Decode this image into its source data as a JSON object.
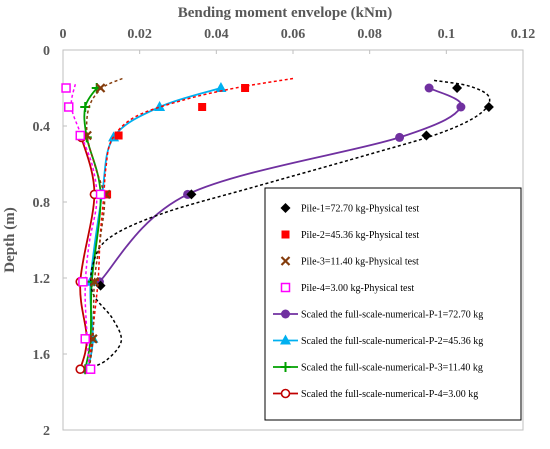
{
  "chart_data": {
    "type": "scatter",
    "title": "",
    "xlabel": "Bending moment envelope (kNm)",
    "ylabel": "Depth (m)",
    "xlim": [
      0,
      0.12
    ],
    "ylim": [
      0,
      2
    ],
    "y_inverted": true,
    "x_axis_position": "top",
    "x_ticks": [
      0,
      0.02,
      0.04,
      0.06,
      0.08,
      0.1,
      0.12
    ],
    "x_tick_labels": [
      "0",
      "0.02",
      "0.04",
      "0.06",
      "0.08",
      "0.1",
      "0.12"
    ],
    "y_ticks": [
      0,
      0.4,
      0.8,
      1.2,
      1.6,
      2
    ],
    "y_tick_labels": [
      "0",
      "0.4",
      "0.8",
      "1.2",
      "1.6",
      "2"
    ],
    "grid": false,
    "legend_position": "right",
    "series": [
      {
        "name": "Pile-1=72.70 kg-Physical test",
        "kind": "marker",
        "marker": "diamond",
        "color": "#000000",
        "points": [
          [
            0.1028,
            0.2
          ],
          [
            0.1111,
            0.3
          ],
          [
            0.0948,
            0.45
          ],
          [
            0.0335,
            0.76
          ],
          [
            0.0098,
            1.24
          ]
        ],
        "fit": [
          [
            0.0968,
            0.16
          ],
          [
            0.106,
            0.19
          ],
          [
            0.1112,
            0.25
          ],
          [
            0.1085,
            0.34
          ],
          [
            0.098,
            0.44
          ],
          [
            0.078,
            0.56
          ],
          [
            0.05,
            0.72
          ],
          [
            0.026,
            0.86
          ],
          [
            0.012,
            0.99
          ],
          [
            0.0078,
            1.13
          ],
          [
            0.0078,
            1.28
          ],
          [
            0.0128,
            1.41
          ],
          [
            0.0152,
            1.53
          ],
          [
            0.0115,
            1.63
          ],
          [
            0.0065,
            1.68
          ]
        ]
      },
      {
        "name": "Pile-2=45.36 kg-Physical test",
        "kind": "marker",
        "marker": "square",
        "color": "#ff0000",
        "points": [
          [
            0.0475,
            0.2
          ],
          [
            0.0363,
            0.3
          ],
          [
            0.0145,
            0.45
          ],
          [
            0.0115,
            0.76
          ]
        ],
        "fit": [
          [
            0.06,
            0.15
          ],
          [
            0.045,
            0.2
          ],
          [
            0.032,
            0.26
          ],
          [
            0.019,
            0.35
          ],
          [
            0.0128,
            0.47
          ],
          [
            0.0112,
            0.62
          ],
          [
            0.0106,
            0.78
          ],
          [
            0.0097,
            0.98
          ],
          [
            0.0092,
            1.2
          ],
          [
            0.0082,
            1.4
          ],
          [
            0.0072,
            1.58
          ],
          [
            0.0068,
            1.68
          ]
        ]
      },
      {
        "name": "Pile-3=11.40 kg-Physical test",
        "kind": "marker",
        "marker": "x",
        "color": "#843c0c",
        "points": [
          [
            0.0098,
            0.2
          ],
          [
            0.0063,
            0.45
          ],
          [
            0.0112,
            0.76
          ],
          [
            0.0082,
            1.22
          ],
          [
            0.0078,
            1.52
          ],
          [
            0.0068,
            1.68
          ]
        ],
        "fit": [
          [
            0.0155,
            0.15
          ],
          [
            0.0102,
            0.2
          ],
          [
            0.0068,
            0.3
          ],
          [
            0.0063,
            0.45
          ],
          [
            0.0085,
            0.62
          ],
          [
            0.0108,
            0.78
          ],
          [
            0.0098,
            0.98
          ],
          [
            0.0082,
            1.22
          ],
          [
            0.0078,
            1.52
          ],
          [
            0.0068,
            1.68
          ]
        ]
      },
      {
        "name": "Pile-4=3.00 kg-Physical test",
        "kind": "marker",
        "marker": "hollow-square",
        "color": "#ff00ff",
        "points": [
          [
            0.0008,
            0.2
          ],
          [
            0.0015,
            0.3
          ],
          [
            0.0045,
            0.45
          ],
          [
            0.0098,
            0.76
          ],
          [
            0.0052,
            1.22
          ],
          [
            0.0058,
            1.52
          ],
          [
            0.0072,
            1.68
          ]
        ],
        "fit": [
          [
            0.0032,
            0.18
          ],
          [
            0.0022,
            0.3
          ],
          [
            0.0048,
            0.45
          ],
          [
            0.0078,
            0.62
          ],
          [
            0.0088,
            0.8
          ],
          [
            0.0068,
            1.02
          ],
          [
            0.0058,
            1.25
          ],
          [
            0.0062,
            1.48
          ],
          [
            0.0068,
            1.66
          ]
        ]
      },
      {
        "name": "Scaled the full-scale-numerical-P-1=72.70 kg",
        "kind": "line",
        "marker": "circle",
        "color": "#7030a0",
        "points": [
          [
            0.0955,
            0.2
          ],
          [
            0.1038,
            0.3
          ],
          [
            0.0878,
            0.46
          ],
          [
            0.0325,
            0.76
          ],
          [
            0.0095,
            1.22
          ]
        ]
      },
      {
        "name": "Scaled the full-scale-numerical-P-2=45.36 kg",
        "kind": "line",
        "marker": "triangle",
        "color": "#00b0f0",
        "points": [
          [
            0.0412,
            0.2
          ],
          [
            0.0252,
            0.3
          ],
          [
            0.0132,
            0.46
          ],
          [
            0.0102,
            0.76
          ],
          [
            0.0072,
            1.22
          ],
          [
            0.0078,
            1.52
          ],
          [
            0.0065,
            1.68
          ]
        ]
      },
      {
        "name": "Scaled the full-scale-numerical-P-3=11.40 kg",
        "kind": "line",
        "marker": "plus",
        "color": "#00a000",
        "points": [
          [
            0.0088,
            0.2
          ],
          [
            0.0058,
            0.3
          ],
          [
            0.0062,
            0.46
          ],
          [
            0.0098,
            0.76
          ],
          [
            0.0075,
            1.22
          ],
          [
            0.0072,
            1.52
          ],
          [
            0.0058,
            1.68
          ]
        ]
      },
      {
        "name": "Scaled the full-scale-numerical-P-4=3.00 kg",
        "kind": "line",
        "marker": "hollow-circle",
        "color": "#c00000",
        "points": [
          [
            0.0048,
            0.46
          ],
          [
            0.0082,
            0.76
          ],
          [
            0.0045,
            1.22
          ],
          [
            0.0062,
            1.52
          ],
          [
            0.0045,
            1.68
          ]
        ]
      }
    ]
  }
}
